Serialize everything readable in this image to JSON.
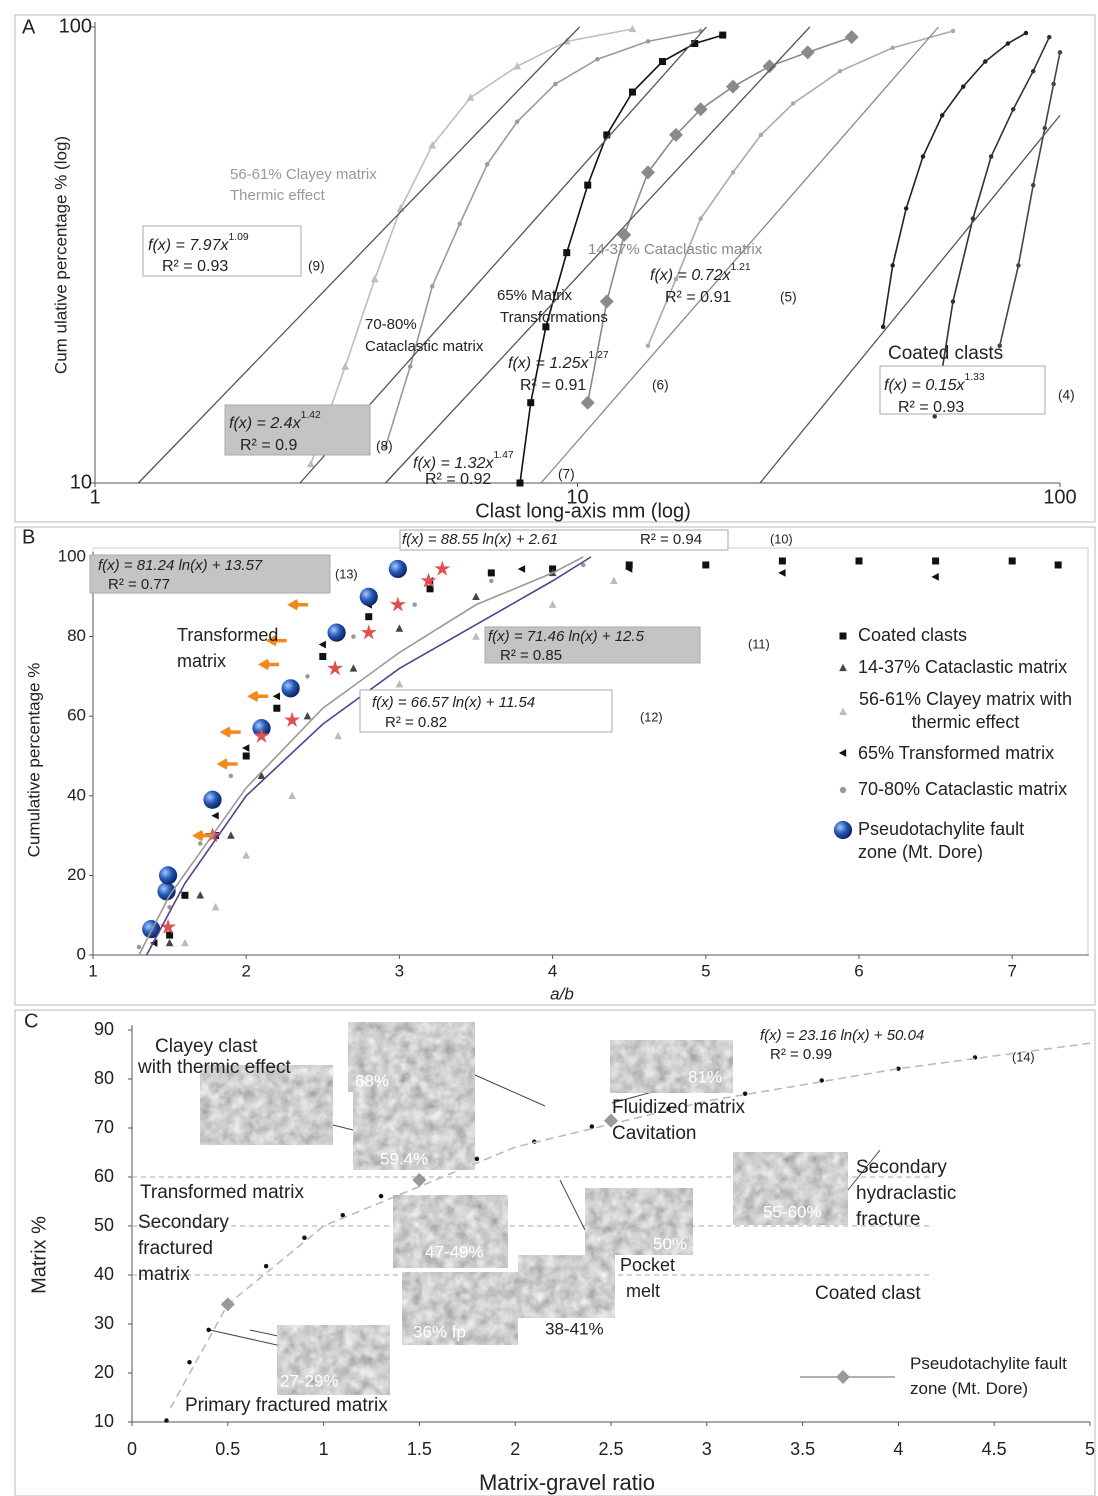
{
  "chart_data": [
    {
      "type": "line",
      "panel": "A",
      "xlabel": "Clast long-axis mm (log)",
      "ylabel": "Cum ulative percentage % (log)",
      "log_x": true,
      "log_y": true,
      "xlim": [
        1,
        100
      ],
      "ylim": [
        10,
        100
      ],
      "xticks": [
        1,
        10,
        100
      ],
      "yticks": [
        10,
        100
      ],
      "series": [
        {
          "color": "#bdbdbd",
          "marker": "triangle",
          "line": true,
          "x": [
            2.8,
            3.3,
            3.8,
            4.3,
            5,
            6,
            7.5,
            9.5,
            13
          ],
          "values": [
            11,
            18,
            28,
            40,
            55,
            70,
            82,
            93,
            99
          ]
        },
        {
          "color": "#9a9a9a",
          "marker": "dot",
          "line": true,
          "x": [
            4,
            4.5,
            5,
            5.7,
            6.5,
            7.5,
            9,
            11,
            14,
            18
          ],
          "values": [
            12,
            18,
            27,
            37,
            50,
            62,
            75,
            85,
            93,
            98
          ]
        },
        {
          "color": "#111111",
          "marker": "square",
          "line": true,
          "x": [
            7.6,
            8,
            8.6,
            9.5,
            10.5,
            11.5,
            13,
            15,
            17.5,
            20
          ],
          "values": [
            10,
            15,
            22,
            32,
            45,
            58,
            72,
            84,
            92,
            96
          ]
        },
        {
          "color": "#8a8a8a",
          "marker": "diamond",
          "line": true,
          "x": [
            10.5,
            11.5,
            12.5,
            14,
            16,
            18,
            21,
            25,
            30,
            37
          ],
          "values": [
            15,
            25,
            35,
            48,
            58,
            66,
            74,
            82,
            88,
            95
          ]
        },
        {
          "color": "#aaaaaa",
          "marker": "dot",
          "line": true,
          "x": [
            14,
            16,
            18,
            21,
            24,
            28,
            35,
            45,
            60
          ],
          "values": [
            20,
            28,
            38,
            48,
            58,
            68,
            80,
            90,
            98
          ]
        },
        {
          "color": "#222222",
          "marker": "dot",
          "line": true,
          "x": [
            43,
            45,
            48,
            52,
            57,
            63,
            70,
            78,
            85
          ],
          "values": [
            22,
            30,
            40,
            52,
            64,
            74,
            84,
            92,
            97
          ]
        },
        {
          "color": "#333333",
          "marker": "dot",
          "line": true,
          "x": [
            55,
            60,
            66,
            72,
            80,
            88,
            95
          ],
          "values": [
            14,
            25,
            38,
            52,
            66,
            80,
            95
          ]
        },
        {
          "color": "#444444",
          "marker": "dot",
          "line": true,
          "x": [
            75,
            82,
            88,
            93,
            97,
            100
          ],
          "values": [
            20,
            30,
            45,
            60,
            75,
            88
          ]
        },
        {
          "color": "#555555",
          "marker": "none",
          "line": true,
          "x": [
            1.23,
            10.1
          ],
          "values": [
            10,
            100
          ]
        },
        {
          "color": "#555555",
          "marker": "none",
          "line": true,
          "x": [
            2.66,
            18.5
          ],
          "values": [
            10,
            100
          ]
        },
        {
          "color": "#555555",
          "marker": "none",
          "line": true,
          "x": [
            4,
            30.3
          ],
          "values": [
            10,
            100
          ]
        },
        {
          "color": "#888888",
          "marker": "none",
          "line": true,
          "x": [
            8.4,
            56
          ],
          "values": [
            10,
            100
          ]
        },
        {
          "color": "#555555",
          "marker": "none",
          "line": true,
          "x": [
            23.9,
            100
          ],
          "values": [
            10,
            64
          ]
        }
      ],
      "labels": [
        [
          "56-61% Clayey matrix",
          "Thermic effect"
        ],
        [
          "70-80%",
          "Cataclastic matrix"
        ],
        [
          "65% Matrix",
          "Transformations"
        ],
        [
          "14-37% Cataclastic matrix"
        ],
        [
          "Coated clasts"
        ]
      ],
      "equations": [
        {
          "fx": "f(x) = 7.97x",
          "exp": "1.09",
          "r2": "R² = 0.93",
          "id": "(9)",
          "box": "white"
        },
        {
          "fx": "f(x) = 2.4x",
          "exp": "1.42",
          "r2": "R² = 0.9",
          "id": "(8)",
          "box": "gray"
        },
        {
          "fx": "f(x) = 1.32x",
          "exp": "1.47",
          "r2": "R² = 0.92",
          "id": "(7)",
          "box": "none"
        },
        {
          "fx": "f(x) = 1.25x",
          "exp": "1.27",
          "r2": "R² = 0.91",
          "id": "(6)",
          "box": "none"
        },
        {
          "fx": "f(x) = 0.72x",
          "exp": "1.21",
          "r2": "R² = 0.91",
          "id": "(5)",
          "box": "none"
        },
        {
          "fx": "f(x) = 0.15x",
          "exp": "1.33",
          "r2": "R² = 0.93",
          "id": "(4)",
          "box": "white"
        }
      ]
    },
    {
      "type": "scatter",
      "panel": "B",
      "xlabel": "a/b",
      "ylabel": "Cumulative percentage %",
      "xlim": [
        1,
        7.5
      ],
      "ylim": [
        0,
        100
      ],
      "xticks": [
        1,
        2,
        3,
        4,
        5,
        6,
        7
      ],
      "yticks": [
        0,
        20,
        40,
        60,
        80,
        100
      ],
      "series": [
        {
          "name": "Coated clasts",
          "color": "#111111",
          "marker": "square",
          "x": [
            1.5,
            1.6,
            1.8,
            2,
            2.2,
            2.5,
            2.8,
            3.2,
            3.6,
            4,
            4.5,
            5,
            5.5,
            6,
            6.5,
            7,
            7.3
          ],
          "values": [
            5,
            15,
            30,
            50,
            62,
            75,
            85,
            92,
            96,
            97,
            98,
            98,
            99,
            99,
            99,
            99,
            98
          ]
        },
        {
          "name": "14-37% Cataclastic matrix",
          "color": "#444444",
          "marker": "triangle",
          "x": [
            1.5,
            1.7,
            1.9,
            2.1,
            2.4,
            2.7,
            3,
            3.5,
            4
          ],
          "values": [
            3,
            15,
            30,
            45,
            60,
            72,
            82,
            90,
            96
          ]
        },
        {
          "name": "56-61% Clayey matrix with thermic effect",
          "color": "#bbbbbb",
          "marker": "triangle",
          "x": [
            1.6,
            1.8,
            2,
            2.3,
            2.6,
            3,
            3.5,
            4,
            4.4
          ],
          "values": [
            3,
            12,
            25,
            40,
            55,
            68,
            80,
            88,
            94
          ]
        },
        {
          "name": "65% Transformed matrix",
          "color": "#111111",
          "marker": "ltriangle",
          "x": [
            1.4,
            1.6,
            1.8,
            2,
            2.2,
            2.5,
            2.8,
            3.2,
            3.8,
            4.5,
            5.5,
            6.5
          ],
          "values": [
            3,
            15,
            35,
            52,
            65,
            78,
            88,
            94,
            97,
            97,
            96,
            95
          ]
        },
        {
          "name": "70-80% Cataclastic matrix",
          "color": "#999999",
          "marker": "dot",
          "x": [
            1.3,
            1.5,
            1.7,
            1.9,
            2.1,
            2.4,
            2.7,
            3.1,
            3.6,
            4.2
          ],
          "values": [
            2,
            12,
            28,
            45,
            58,
            70,
            80,
            88,
            94,
            98
          ]
        },
        {
          "name": "Pseudotachylite fault zone (Mt. Dore)",
          "color": "#1f4fa8",
          "marker": "sphere",
          "x": [
            1.38,
            1.48,
            1.49,
            1.78,
            2.1,
            2.29,
            2.59,
            2.8,
            2.99
          ],
          "values": [
            6.5,
            16,
            20,
            39,
            57,
            67,
            81,
            90,
            97
          ]
        },
        {
          "color": "#e05050",
          "marker": "star",
          "x": [
            1.49,
            1.78,
            2.1,
            2.3,
            2.58,
            2.8,
            2.99,
            3.19,
            3.28
          ],
          "values": [
            7,
            30,
            55,
            59,
            72,
            81,
            88,
            94,
            97
          ]
        },
        {
          "color": "#f08a1c",
          "marker": "arrow",
          "x": [
            1.72,
            1.88,
            1.9,
            2.08,
            2.15,
            2.2,
            2.34
          ],
          "values": [
            30,
            48,
            56,
            65,
            73,
            79,
            88
          ]
        },
        {
          "color": "#5b3f8c",
          "marker": "none",
          "line": true,
          "x": [
            1.35,
            1.6,
            2,
            2.5,
            3,
            3.5,
            4,
            4.25
          ],
          "values": [
            0,
            18,
            40,
            58,
            72,
            83,
            94,
            100
          ]
        },
        {
          "color": "#999999",
          "marker": "none",
          "line": true,
          "x": [
            1.3,
            1.5,
            2,
            2.5,
            3,
            3.5,
            4,
            4.2
          ],
          "values": [
            0,
            15,
            42,
            62,
            76,
            88,
            96,
            100
          ]
        }
      ],
      "labels": [
        [
          "Transformed",
          "matrix"
        ]
      ],
      "equations": [
        {
          "fx": "f(x) = 81.24 ln(x) + 13.57",
          "r2": "R² = 0.77",
          "id": "(13)",
          "box": "gray"
        },
        {
          "fx": "f(x) = 88.55 ln(x) + 2.61",
          "r2": "R² = 0.94",
          "id": "(10)",
          "box": "white"
        },
        {
          "fx": "f(x) = 71.46 ln(x) + 12.5",
          "r2": "R² = 0.85",
          "id": "(11)",
          "box": "gray"
        },
        {
          "fx": "f(x) = 66.57 ln(x) + 11.54",
          "r2": "R² = 0.82",
          "id": "(12)",
          "box": "white"
        }
      ]
    },
    {
      "type": "scatter",
      "panel": "C",
      "xlabel": "Matrix-gravel ratio",
      "ylabel": "Matrix %",
      "xlim": [
        0,
        5
      ],
      "ylim": [
        10,
        90
      ],
      "xticks": [
        0,
        0.5,
        1,
        1.5,
        2,
        2.5,
        3,
        3.5,
        4,
        4.5,
        5
      ],
      "yticks": [
        10,
        20,
        30,
        40,
        50,
        60,
        70,
        80,
        90
      ],
      "hlines": [
        60,
        50,
        40
      ],
      "series": [
        {
          "color": "#111111",
          "marker": "dot",
          "x": [
            0.18,
            0.3,
            0.4,
            0.5,
            0.7,
            0.9,
            1.1,
            1.3,
            1.5,
            1.8,
            2.1,
            2.4,
            2.8,
            3.2,
            3.6,
            4,
            4.4
          ],
          "values": [
            10.3,
            22.2,
            28.8,
            34.0,
            41.8,
            47.6,
            52.2,
            56.1,
            59.4,
            63.7,
            67.2,
            70.3,
            73.9,
            77.0,
            79.7,
            82.1,
            84.4
          ]
        },
        {
          "color": "#bbbbbb",
          "marker": "none",
          "line": true,
          "dash": true,
          "x": [
            0.2,
            0.5,
            1,
            2,
            3,
            4,
            5
          ],
          "values": [
            12.8,
            34.0,
            50.0,
            66.1,
            75.5,
            82.1,
            87.3
          ]
        },
        {
          "name": "Pseudotachylite fault zone (Mt. Dore)",
          "color": "#999999",
          "marker": "diamond",
          "x": [
            0.5,
            1.5,
            2.5
          ],
          "values": [
            34,
            59.4,
            71.5
          ]
        }
      ],
      "labels": [
        [
          "Clayey    clast",
          "with thermic effect"
        ],
        [
          "Transformed matrix"
        ],
        [
          "Secondary",
          "fractured",
          "matrix"
        ],
        [
          "Fluidized matrix",
          "Cavitation"
        ],
        [
          "Secondary",
          "hydraclastic",
          "fracture"
        ],
        [
          "Pocket",
          "melt"
        ],
        [
          "Coated clast"
        ],
        [
          "Primary fractured matrix"
        ]
      ],
      "images": [
        "68%",
        "81%",
        "59.4%",
        "47-49%",
        "50%",
        "55-60%",
        "36% fp",
        "38-41%",
        "27-29%"
      ],
      "equations": [
        {
          "fx": "f(x) = 23.16 ln(x) + 50.04",
          "r2": "R² = 0.99",
          "id": "(14)",
          "box": "none"
        }
      ]
    }
  ]
}
